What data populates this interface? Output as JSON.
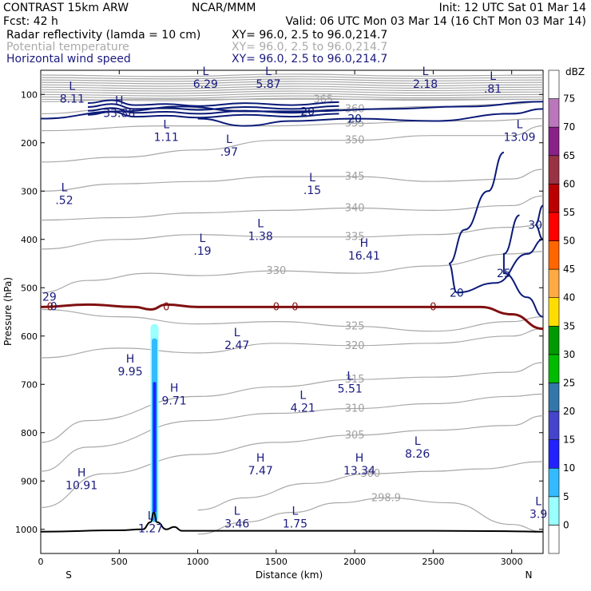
{
  "header": {
    "model": "CONTRAST 15km ARW",
    "org": "NCAR/MMM",
    "init": "Init: 12 UTC Sat 01 Mar 14",
    "fcst": "Fcst:   42 h",
    "valid": "Valid: 06 UTC Mon 03 Mar 14 (16 ChT Mon 03 Mar 14)"
  },
  "legend": [
    {
      "name": "Radar reflectivity (lamda = 10 cm)",
      "xy": "XY=  96.0,  2.5 to  96.0,214.7",
      "color": "#000000"
    },
    {
      "name": "Potential temperature",
      "xy": "XY=  96.0,  2.5 to  96.0,214.7",
      "color": "#aaaaaa"
    },
    {
      "name": "Horizontal wind speed",
      "xy": "XY=  96.0,  2.5 to  96.0,214.7",
      "color": "#1a1a80"
    }
  ],
  "chart_data": {
    "type": "cross-section",
    "xlabel": "Distance (km)",
    "ylabel": "Pressure (hPa)",
    "xlim": [
      0,
      3200
    ],
    "ylim": [
      1050,
      50
    ],
    "x_ticks": [
      0,
      500,
      1000,
      1500,
      2000,
      2500,
      3000
    ],
    "y_ticks": [
      100,
      200,
      300,
      400,
      500,
      600,
      700,
      800,
      900,
      1000
    ],
    "x_end_labels": {
      "left": "S",
      "right": "N"
    },
    "colorbar": {
      "unit": "dBZ",
      "levels": [
        0,
        5,
        10,
        15,
        20,
        25,
        30,
        35,
        40,
        45,
        50,
        55,
        60,
        65,
        70,
        75
      ],
      "colors": [
        "#ffffff",
        "#99ffff",
        "#33bbff",
        "#2222ff",
        "#4444cc",
        "#3377aa",
        "#00bb00",
        "#009900",
        "#ffdd00",
        "#ffaa44",
        "#ff6600",
        "#ff0000",
        "#bb0000",
        "#993344",
        "#882288",
        "#bb77bb",
        "#ffffff"
      ]
    },
    "theta_contours": [
      {
        "value": "298.9",
        "pts": [
          [
            1000,
            1010
          ],
          [
            1300,
            985
          ],
          [
            1600,
            965
          ],
          [
            1900,
            945
          ],
          [
            2200,
            935
          ],
          [
            2600,
            945
          ],
          [
            3000,
            990
          ],
          [
            3200,
            1005
          ]
        ]
      },
      {
        "value": "300",
        "pts": [
          [
            1000,
            960
          ],
          [
            1300,
            935
          ],
          [
            1700,
            905
          ],
          [
            2100,
            885
          ],
          [
            2500,
            880
          ],
          [
            2800,
            875
          ],
          [
            3200,
            860
          ]
        ]
      },
      {
        "value": "305",
        "pts": [
          [
            0,
            955
          ],
          [
            400,
            885
          ],
          [
            1000,
            845
          ],
          [
            1500,
            820
          ],
          [
            2000,
            805
          ],
          [
            2500,
            795
          ],
          [
            3000,
            785
          ],
          [
            3200,
            765
          ]
        ]
      },
      {
        "value": "310",
        "pts": [
          [
            0,
            880
          ],
          [
            300,
            830
          ],
          [
            1000,
            775
          ],
          [
            1500,
            760
          ],
          [
            2000,
            750
          ],
          [
            2500,
            740
          ],
          [
            3000,
            725
          ],
          [
            3200,
            720
          ]
        ]
      },
      {
        "value": "315",
        "pts": [
          [
            0,
            820
          ],
          [
            300,
            775
          ],
          [
            1000,
            725
          ],
          [
            1500,
            705
          ],
          [
            2000,
            690
          ],
          [
            2500,
            685
          ],
          [
            3000,
            675
          ],
          [
            3200,
            655
          ]
        ]
      },
      {
        "value": "320",
        "pts": [
          [
            0,
            645
          ],
          [
            500,
            625
          ],
          [
            1000,
            635
          ],
          [
            1500,
            615
          ],
          [
            2000,
            620
          ],
          [
            2500,
            615
          ],
          [
            3000,
            600
          ],
          [
            3200,
            585
          ]
        ]
      },
      {
        "value": "325",
        "pts": [
          [
            0,
            545
          ],
          [
            500,
            560
          ],
          [
            1000,
            575
          ],
          [
            1500,
            570
          ],
          [
            2000,
            580
          ],
          [
            2500,
            590
          ],
          [
            3000,
            570
          ],
          [
            3200,
            560
          ]
        ]
      },
      {
        "value": "330",
        "pts": [
          [
            0,
            510
          ],
          [
            300,
            485
          ],
          [
            700,
            470
          ],
          [
            1000,
            475
          ],
          [
            1500,
            465
          ],
          [
            2000,
            470
          ],
          [
            2500,
            455
          ],
          [
            3000,
            430
          ],
          [
            3200,
            425
          ]
        ]
      },
      {
        "value": "335",
        "pts": [
          [
            0,
            420
          ],
          [
            500,
            400
          ],
          [
            1000,
            390
          ],
          [
            1500,
            395
          ],
          [
            2000,
            395
          ],
          [
            2500,
            390
          ],
          [
            3000,
            375
          ],
          [
            3200,
            370
          ]
        ]
      },
      {
        "value": "340",
        "pts": [
          [
            0,
            360
          ],
          [
            500,
            355
          ],
          [
            1000,
            345
          ],
          [
            1500,
            340
          ],
          [
            2000,
            335
          ],
          [
            2500,
            340
          ],
          [
            3000,
            330
          ],
          [
            3200,
            310
          ]
        ]
      },
      {
        "value": "345",
        "pts": [
          [
            0,
            300
          ],
          [
            500,
            285
          ],
          [
            1000,
            280
          ],
          [
            1500,
            270
          ],
          [
            2000,
            270
          ],
          [
            2500,
            280
          ],
          [
            3000,
            275
          ],
          [
            3200,
            255
          ]
        ]
      },
      {
        "value": "350",
        "pts": [
          [
            0,
            240
          ],
          [
            500,
            230
          ],
          [
            1000,
            215
          ],
          [
            1500,
            195
          ],
          [
            2000,
            195
          ],
          [
            2500,
            185
          ],
          [
            3000,
            185
          ],
          [
            3200,
            165
          ]
        ]
      },
      {
        "value": "355",
        "pts": [
          [
            0,
            175
          ],
          [
            800,
            165
          ],
          [
            1500,
            165
          ],
          [
            2000,
            160
          ],
          [
            2500,
            155
          ],
          [
            2800,
            155
          ],
          [
            3200,
            150
          ]
        ]
      },
      {
        "value": "360",
        "pts": [
          [
            0,
            140
          ],
          [
            500,
            130
          ],
          [
            1000,
            130
          ],
          [
            1500,
            135
          ],
          [
            2000,
            130
          ],
          [
            2500,
            125
          ],
          [
            3000,
            120
          ],
          [
            3200,
            115
          ]
        ]
      },
      {
        "value": "365",
        "pts": [
          [
            0,
            115
          ],
          [
            600,
            110
          ],
          [
            1200,
            110
          ],
          [
            1800,
            110
          ],
          [
            2400,
            110
          ],
          [
            3200,
            110
          ]
        ]
      }
    ],
    "wind_contours": [
      {
        "value": "20",
        "pts": [
          [
            0,
            150
          ],
          [
            500,
            135
          ],
          [
            900,
            125
          ],
          [
            1300,
            135
          ],
          [
            1700,
            135
          ],
          [
            2200,
            130
          ],
          [
            2700,
            125
          ],
          [
            3200,
            115
          ]
        ]
      },
      {
        "value": "20",
        "pts": [
          [
            1000,
            150
          ],
          [
            1300,
            165
          ],
          [
            1600,
            155
          ],
          [
            2000,
            150
          ],
          [
            2500,
            155
          ],
          [
            3000,
            140
          ],
          [
            3200,
            130
          ]
        ]
      },
      {
        "value": "20",
        "pts": [
          [
            2950,
            220
          ],
          [
            2850,
            300
          ],
          [
            2700,
            380
          ],
          [
            2600,
            450
          ],
          [
            2650,
            510
          ],
          [
            2900,
            490
          ],
          [
            3100,
            430
          ],
          [
            3200,
            400
          ]
        ]
      },
      {
        "value": "25",
        "pts": [
          [
            3050,
            350
          ],
          [
            2950,
            430
          ],
          [
            2950,
            470
          ],
          [
            3100,
            520
          ],
          [
            3200,
            560
          ]
        ]
      },
      {
        "value": "30",
        "pts": [
          [
            3200,
            330
          ],
          [
            3150,
            370
          ],
          [
            3200,
            400
          ]
        ]
      }
    ],
    "zero_line": {
      "value": "0",
      "pts": [
        [
          0,
          540
        ],
        [
          300,
          535
        ],
        [
          600,
          540
        ],
        [
          700,
          545
        ],
        [
          800,
          535
        ],
        [
          1000,
          540
        ],
        [
          1500,
          540
        ],
        [
          2000,
          540
        ],
        [
          2500,
          540
        ],
        [
          2800,
          540
        ],
        [
          3000,
          555
        ],
        [
          3200,
          585
        ]
      ]
    },
    "terrain": [
      [
        0,
        1005
      ],
      [
        500,
        1002
      ],
      [
        650,
        1000
      ],
      [
        700,
        985
      ],
      [
        720,
        965
      ],
      [
        740,
        985
      ],
      [
        800,
        1000
      ],
      [
        850,
        995
      ],
      [
        900,
        1003
      ],
      [
        1500,
        1003
      ],
      [
        2000,
        1003
      ],
      [
        2500,
        1003
      ],
      [
        3000,
        1004
      ],
      [
        3200,
        1005
      ]
    ],
    "reflectivity_column": {
      "x_center": 725,
      "top": 575,
      "bottom": 985
    },
    "hl_labels": [
      {
        "kind": "L",
        "value": "8.11",
        "x": 200,
        "p": 100
      },
      {
        "kind": "H",
        "value": "33.88",
        "x": 500,
        "p": 130
      },
      {
        "kind": "L",
        "value": "6.29",
        "x": 1050,
        "p": 70
      },
      {
        "kind": "L",
        "value": "5.87",
        "x": 1450,
        "p": 70
      },
      {
        "kind": "L",
        "value": "2.18",
        "x": 2450,
        "p": 70
      },
      {
        "kind": "L",
        "value": ".81",
        "x": 2880,
        "p": 80
      },
      {
        "kind": "L",
        "value": "13.09",
        "x": 3050,
        "p": 180
      },
      {
        "kind": "L",
        "value": "1.11",
        "x": 800,
        "p": 180
      },
      {
        "kind": "L",
        "value": ".97",
        "x": 1200,
        "p": 210
      },
      {
        "kind": "L",
        "value": ".15",
        "x": 1730,
        "p": 290
      },
      {
        "kind": "L",
        "value": ".52",
        "x": 150,
        "p": 310
      },
      {
        "kind": "L",
        "value": "1.38",
        "x": 1400,
        "p": 385
      },
      {
        "kind": "L",
        "value": ".19",
        "x": 1030,
        "p": 415
      },
      {
        "kind": "H",
        "value": "16.41",
        "x": 2060,
        "p": 425
      },
      {
        "kind": "L",
        "value": "2.47",
        "x": 1250,
        "p": 610
      },
      {
        "kind": "H",
        "value": "9.95",
        "x": 570,
        "p": 665
      },
      {
        "kind": "L",
        "value": "5.51",
        "x": 1970,
        "p": 700
      },
      {
        "kind": "H",
        "value": "9.71",
        "x": 850,
        "p": 725
      },
      {
        "kind": "L",
        "value": "4.21",
        "x": 1670,
        "p": 740
      },
      {
        "kind": "L",
        "value": "8.26",
        "x": 2400,
        "p": 835
      },
      {
        "kind": "H",
        "value": "7.47",
        "x": 1400,
        "p": 870
      },
      {
        "kind": "H",
        "value": "13.34",
        "x": 2030,
        "p": 870
      },
      {
        "kind": "H",
        "value": "10.91",
        "x": 260,
        "p": 900
      },
      {
        "kind": "L",
        "value": "3.46",
        "x": 1250,
        "p": 980
      },
      {
        "kind": "L",
        "value": "1.75",
        "x": 1620,
        "p": 980
      },
      {
        "kind": "L",
        "value": "1.27",
        "x": 700,
        "p": 990
      },
      {
        "kind": "L",
        "value": "3.9",
        "x": 3170,
        "p": 960
      }
    ],
    "edge_labels": [
      {
        "value": "29",
        "x": 10,
        "p": 520
      },
      {
        "value": "0",
        "x": 60,
        "p": 540
      }
    ]
  }
}
